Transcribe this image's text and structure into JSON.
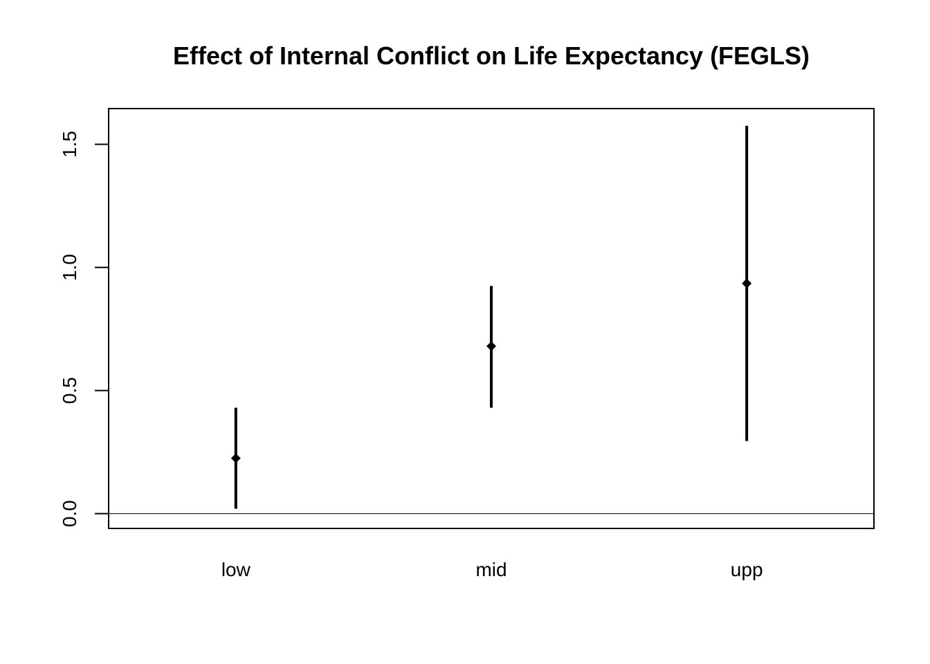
{
  "chart_data": {
    "type": "scatter",
    "title": "Effect of Internal Conflict on Life Expectancy (FEGLS)",
    "xlabel": "",
    "ylabel": "",
    "categories": [
      "low",
      "mid",
      "upp"
    ],
    "series": [
      {
        "estimate": [
          0.225,
          0.68,
          0.935
        ],
        "lower": [
          0.02,
          0.43,
          0.295
        ],
        "upper": [
          0.43,
          0.925,
          1.575
        ]
      }
    ],
    "ylim": [
      -0.06,
      1.645
    ],
    "yticks": [
      0.0,
      0.5,
      1.0,
      1.5
    ],
    "ytick_labels": [
      "0.0",
      "0.5",
      "1.0",
      "1.5"
    ],
    "reference_line_y": 0,
    "grid": false,
    "legend": "none",
    "colors": {
      "marks": "#000000",
      "axes": "#000000"
    }
  }
}
